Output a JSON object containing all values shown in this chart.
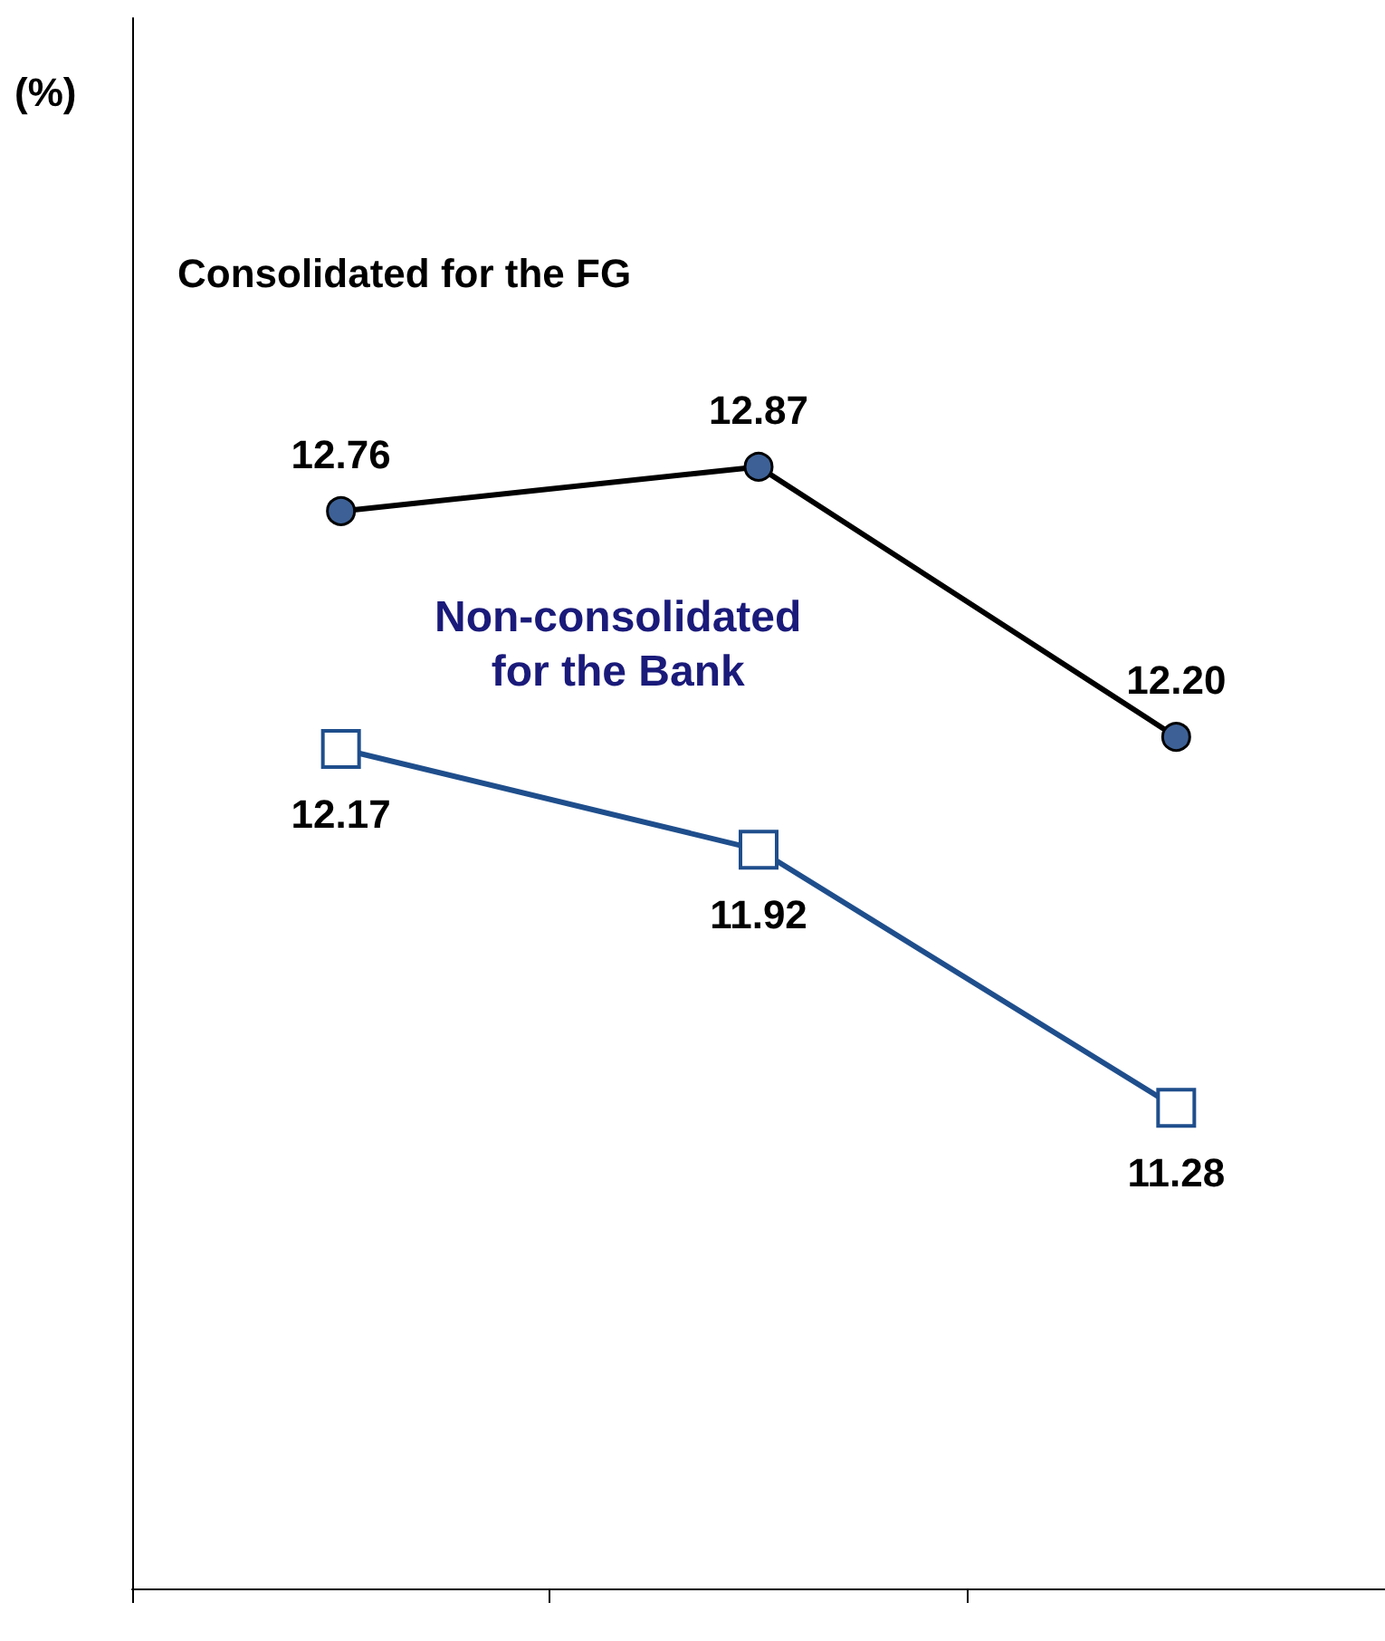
{
  "chart_data": {
    "type": "line",
    "annotations": [
      "(%)"
    ],
    "categories": [
      null,
      null,
      null
    ],
    "series": [
      {
        "name": "Consolidated for the FG",
        "color": "#000000",
        "marker": "circle",
        "values": [
          12.76,
          12.87,
          12.2
        ],
        "value_labels": [
          "12.76",
          "12.87",
          "12.20"
        ]
      },
      {
        "name": "Non-consolidated\nfor the Bank",
        "color": "#1f4e8c",
        "marker": "square",
        "values": [
          12.17,
          11.92,
          11.28
        ],
        "value_labels": [
          "12.17",
          "11.92",
          "11.28"
        ]
      }
    ],
    "legend": false,
    "grid": false,
    "tick_labels": false
  }
}
